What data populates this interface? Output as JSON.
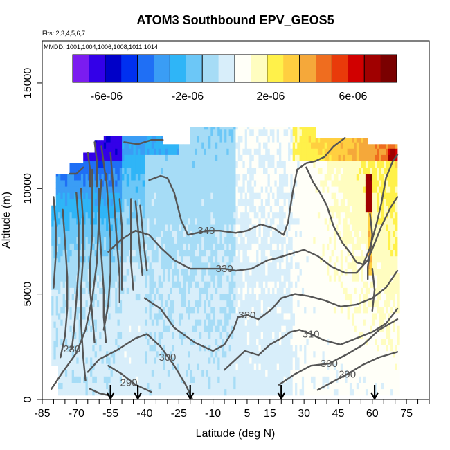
{
  "chart_data": {
    "type": "heatmap",
    "title": "ATOM3 Southbound EPV_GEOS5",
    "flights_label": "Flts: 2,3,4,5,6,7",
    "dates_label": "MMDD: 1001,1004,1006,1008,1011,1014",
    "xlabel": "Latitude (deg N)",
    "ylabel": "Altitude (m)",
    "xlim": [
      -85,
      85
    ],
    "ylim": [
      0,
      17000
    ],
    "x_ticks": [
      -85,
      -70,
      -55,
      -40,
      -25,
      -10,
      5,
      15,
      30,
      45,
      60,
      75
    ],
    "x_minor_ticks": [
      -80,
      -75,
      -65,
      -60,
      -50,
      -45,
      -35,
      -30,
      -20,
      -15,
      -5,
      0,
      10,
      20,
      25,
      35,
      40,
      50,
      55,
      65,
      70,
      80,
      85
    ],
    "y_ticks": [
      0,
      5000,
      10000,
      15000
    ],
    "colorbar": {
      "range": [
        -8e-06,
        8e-06
      ],
      "tick_values": [
        -6e-06,
        -2e-06,
        2e-06,
        6e-06
      ],
      "tick_labels": [
        "-6e-06",
        "-2e-06",
        "2e-06",
        "6e-06"
      ],
      "colors": [
        "#7b1cf0",
        "#3300e8",
        "#0000c8",
        "#0030f0",
        "#1f6ff5",
        "#3a9df5",
        "#2fb5f7",
        "#6cc7f7",
        "#a6dcf6",
        "#d8eefa",
        "#fffff8",
        "#fffdc0",
        "#fff14a",
        "#ffcf40",
        "#f5a83a",
        "#ef6d1f",
        "#e93a0a",
        "#d10000",
        "#a00000",
        "#7a0000"
      ]
    },
    "flight_crossings_lat": [
      -55,
      -43,
      -20,
      20,
      61
    ],
    "contours": [
      {
        "label": "280",
        "label_at": [
          -72,
          2400
        ],
        "points": [
          [
            -81,
            500
          ],
          [
            -76,
            1300
          ],
          [
            -70,
            2200
          ],
          [
            -66,
            3300
          ],
          [
            -63,
            4800
          ],
          [
            -61,
            6500
          ],
          [
            -60,
            8800
          ],
          [
            -59,
            10400
          ]
        ]
      },
      {
        "label": "290",
        "label_at": [
          -47,
          800
        ],
        "points": [
          [
            -56,
            1600
          ],
          [
            -50,
            1200
          ],
          [
            -44,
            700
          ],
          [
            -37,
            350
          ]
        ]
      },
      {
        "label": "290",
        "label_at": [
          49,
          1200
        ],
        "points": [
          [
            36,
            450
          ],
          [
            42,
            800
          ],
          [
            49,
            1200
          ],
          [
            56,
            1650
          ],
          [
            63,
            2000
          ],
          [
            71,
            2250
          ]
        ]
      },
      {
        "label": "300",
        "label_at": [
          -30,
          2000
        ],
        "points": [
          [
            -65,
            1300
          ],
          [
            -60,
            1900
          ],
          [
            -52,
            2350
          ],
          [
            -44,
            2900
          ],
          [
            -39,
            3100
          ],
          [
            -33,
            2500
          ],
          [
            -27,
            1600
          ],
          [
            -22,
            700
          ],
          [
            -19,
            0
          ]
        ]
      },
      {
        "label": "300",
        "label_at": [
          41,
          1700
        ],
        "points": [
          [
            19,
            700
          ],
          [
            26,
            1200
          ],
          [
            33,
            1600
          ],
          [
            41,
            1700
          ],
          [
            49,
            2150
          ],
          [
            56,
            2600
          ],
          [
            63,
            3300
          ],
          [
            71,
            3800
          ]
        ]
      },
      {
        "label": "310",
        "label_at": [
          33,
          3100
        ],
        "points": [
          [
            -5,
            1400
          ],
          [
            -1,
            1800
          ],
          [
            4,
            2300
          ],
          [
            10,
            2100
          ],
          [
            15,
            2600
          ],
          [
            20,
            2900
          ],
          [
            24,
            3200
          ],
          [
            28,
            3300
          ],
          [
            33,
            3100
          ],
          [
            39,
            2800
          ],
          [
            46,
            2600
          ],
          [
            53,
            2900
          ],
          [
            60,
            3200
          ],
          [
            66,
            3600
          ],
          [
            71,
            4300
          ]
        ]
      },
      {
        "label": "320",
        "label_at": [
          5,
          4000
        ],
        "points": [
          [
            -40,
            4800
          ],
          [
            -33,
            4300
          ],
          [
            -27,
            3400
          ],
          [
            -18,
            2700
          ],
          [
            -10,
            2300
          ],
          [
            -5,
            2600
          ],
          [
            -1,
            3300
          ],
          [
            1,
            3900
          ],
          [
            5,
            4000
          ],
          [
            10,
            3800
          ],
          [
            16,
            4300
          ],
          [
            20,
            4800
          ],
          [
            26,
            5000
          ],
          [
            32,
            4900
          ],
          [
            39,
            4700
          ],
          [
            46,
            4400
          ],
          [
            53,
            4500
          ],
          [
            60,
            4800
          ],
          [
            66,
            5300
          ],
          [
            71,
            6100
          ]
        ]
      },
      {
        "label": "330",
        "label_at": [
          -5,
          6200
        ],
        "points": [
          [
            -56,
            7000
          ],
          [
            -50,
            7600
          ],
          [
            -44,
            8000
          ],
          [
            -38,
            7800
          ],
          [
            -33,
            7200
          ],
          [
            -27,
            6600
          ],
          [
            -20,
            6200
          ],
          [
            -14,
            6200
          ],
          [
            -10,
            6200
          ],
          [
            -5,
            6200
          ],
          [
            0,
            6100
          ],
          [
            7,
            6200
          ],
          [
            14,
            6600
          ],
          [
            18,
            6700
          ],
          [
            24,
            6900
          ],
          [
            30,
            7100
          ],
          [
            36,
            6800
          ],
          [
            42,
            6300
          ],
          [
            48,
            6000
          ],
          [
            53,
            6000
          ],
          [
            58,
            6600
          ],
          [
            61,
            7400
          ],
          [
            64,
            8200
          ],
          [
            68,
            9100
          ],
          [
            71,
            9600
          ]
        ]
      },
      {
        "label": "340",
        "label_at": [
          -13,
          8000
        ],
        "points": [
          [
            -38,
            10400
          ],
          [
            -33,
            10600
          ],
          [
            -30,
            10500
          ],
          [
            -27,
            9800
          ],
          [
            -24,
            8500
          ],
          [
            -21,
            7800
          ],
          [
            -17,
            7900
          ],
          [
            -13,
            8000
          ],
          [
            -7,
            8000
          ],
          [
            0,
            7900
          ],
          [
            5,
            8000
          ],
          [
            11,
            8300
          ],
          [
            17,
            8100
          ],
          [
            21,
            7800
          ],
          [
            23,
            8400
          ],
          [
            25,
            9800
          ],
          [
            27,
            10900
          ],
          [
            31,
            11200
          ],
          [
            35,
            11300
          ],
          [
            39,
            11500
          ],
          [
            43,
            12000
          ],
          [
            48,
            12400
          ]
        ]
      },
      {
        "label": "",
        "label_at": null,
        "points": [
          [
            31,
            11000
          ],
          [
            34,
            10300
          ],
          [
            37,
            9800
          ],
          [
            40,
            9200
          ],
          [
            43,
            8200
          ],
          [
            47,
            7400
          ],
          [
            50,
            7000
          ],
          [
            53,
            6500
          ],
          [
            56,
            6400
          ],
          [
            59,
            7200
          ],
          [
            62,
            8400
          ],
          [
            64,
            9300
          ],
          [
            66,
            10500
          ],
          [
            69,
            11300
          ],
          [
            71,
            11600
          ]
        ]
      },
      {
        "label": "",
        "label_at": null,
        "points": [
          [
            -49,
            12200
          ],
          [
            -43,
            12100
          ],
          [
            -37,
            12300
          ],
          [
            -32,
            12300
          ]
        ]
      },
      {
        "label": "",
        "label_at": null,
        "points": [
          [
            -76,
            9000
          ],
          [
            -75,
            7500
          ],
          [
            -74,
            5800
          ],
          [
            -74,
            4300
          ],
          [
            -75,
            3000
          ],
          [
            -77,
            2000
          ]
        ]
      },
      {
        "label": "",
        "label_at": null,
        "points": [
          [
            -70,
            9800
          ],
          [
            -69,
            8300
          ],
          [
            -69,
            6300
          ],
          [
            -70,
            4700
          ],
          [
            -71,
            3300
          ],
          [
            -72,
            2400
          ]
        ]
      },
      {
        "label": "",
        "label_at": null,
        "points": [
          [
            -68,
            10000
          ],
          [
            -67,
            8400
          ],
          [
            -67,
            6800
          ],
          [
            -68,
            5200
          ],
          [
            -68,
            3700
          ],
          [
            -67,
            2000
          ],
          [
            -66,
            900
          ]
        ]
      },
      {
        "label": "",
        "label_at": null,
        "points": [
          [
            -63,
            10900
          ],
          [
            -63,
            9400
          ],
          [
            -63,
            7800
          ],
          [
            -64,
            6400
          ],
          [
            -64,
            5200
          ],
          [
            -63,
            4000
          ],
          [
            -62,
            2700
          ]
        ]
      },
      {
        "label": "",
        "label_at": null,
        "points": [
          [
            -60,
            10000
          ],
          [
            -60,
            8300
          ],
          [
            -59,
            6800
          ],
          [
            -58,
            5200
          ],
          [
            -58,
            3900
          ],
          [
            -57,
            2700
          ]
        ]
      },
      {
        "label": "",
        "label_at": null,
        "points": [
          [
            -57,
            10700
          ],
          [
            -56,
            9200
          ],
          [
            -55,
            7600
          ],
          [
            -55,
            6000
          ],
          [
            -56,
            4500
          ],
          [
            -58,
            3300
          ]
        ]
      },
      {
        "label": "",
        "label_at": null,
        "points": [
          [
            -55,
            11700
          ],
          [
            -54,
            10300
          ],
          [
            -53,
            8700
          ],
          [
            -52,
            7200
          ],
          [
            -51,
            5800
          ],
          [
            -51,
            4600
          ]
        ]
      },
      {
        "label": "",
        "label_at": null,
        "points": [
          [
            -51,
            9500
          ],
          [
            -50,
            8200
          ],
          [
            -50,
            6700
          ],
          [
            -50,
            5200
          ]
        ]
      },
      {
        "label": "",
        "label_at": null,
        "points": [
          [
            -46,
            9500
          ],
          [
            -46,
            8000
          ],
          [
            -46,
            6500
          ],
          [
            -45,
            5200
          ]
        ]
      },
      {
        "label": "",
        "label_at": null,
        "points": [
          [
            -44,
            9400
          ],
          [
            -43,
            8200
          ],
          [
            -42,
            7000
          ],
          [
            -41,
            5900
          ]
        ]
      },
      {
        "label": "",
        "label_at": null,
        "points": [
          [
            -42,
            9200
          ],
          [
            -41,
            8100
          ],
          [
            -40,
            7000
          ],
          [
            -39,
            6100
          ]
        ]
      },
      {
        "label": "",
        "label_at": null,
        "points": [
          [
            -62,
            12200
          ],
          [
            -61,
            11300
          ],
          [
            -61,
            10100
          ]
        ]
      },
      {
        "label": "",
        "label_at": null,
        "points": [
          [
            -59,
            12000
          ],
          [
            -58,
            11200
          ],
          [
            -57,
            10400
          ]
        ]
      },
      {
        "label": "",
        "label_at": null,
        "points": [
          [
            -65,
            11700
          ],
          [
            -64,
            10900
          ],
          [
            -64,
            10100
          ]
        ]
      },
      {
        "label": "",
        "label_at": null,
        "points": [
          [
            -73,
            10700
          ],
          [
            -70,
            10700
          ],
          [
            -67,
            11000
          ]
        ]
      },
      {
        "label": "",
        "label_at": null,
        "points": [
          [
            -80,
            9600
          ],
          [
            -79,
            8200
          ],
          [
            -79,
            6900
          ],
          [
            -80,
            5300
          ]
        ]
      },
      {
        "label": "",
        "label_at": null,
        "points": [
          [
            59,
            8800
          ],
          [
            60,
            7800
          ],
          [
            59,
            6900
          ],
          [
            58,
            6300
          ],
          [
            58,
            5700
          ]
        ]
      },
      {
        "label": "",
        "label_at": null,
        "points": [
          [
            60,
            4200
          ],
          [
            61,
            5200
          ],
          [
            60,
            6200
          ]
        ]
      },
      {
        "label": "",
        "label_at": null,
        "points": [
          [
            -64,
            500
          ],
          [
            -60,
            300
          ],
          [
            -56,
            200
          ]
        ]
      }
    ]
  }
}
